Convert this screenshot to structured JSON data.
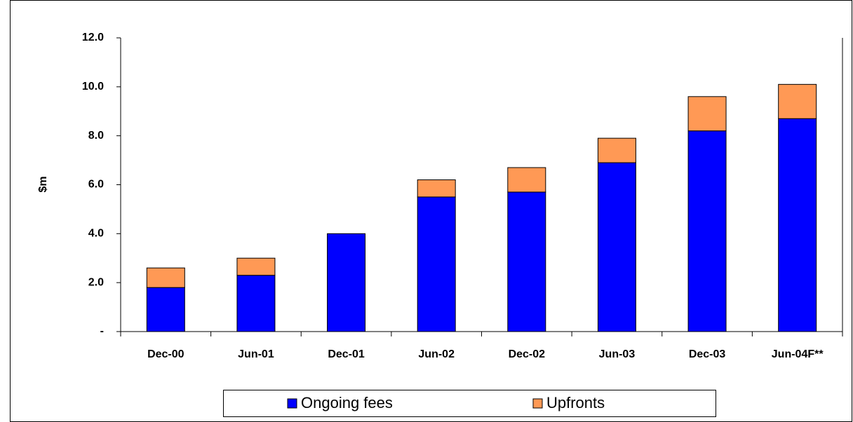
{
  "chart_data": {
    "type": "stacked_bar",
    "y_label": "$m",
    "categories": [
      "Dec-00",
      "Jun-01",
      "Dec-01",
      "Jun-02",
      "Dec-02",
      "Jun-03",
      "Dec-03",
      "Jun-04F**"
    ],
    "series": [
      {
        "name": "Ongoing fees",
        "color": "#0000ff",
        "values": [
          1.8,
          2.3,
          4.0,
          5.5,
          5.7,
          6.9,
          8.2,
          8.7
        ]
      },
      {
        "name": "Upfronts",
        "color": "#ff9955",
        "values": [
          0.8,
          0.7,
          0,
          0.7,
          1.0,
          1.0,
          1.4,
          1.4
        ]
      }
    ],
    "ylim": [
      0,
      12
    ],
    "yticks": [
      {
        "value": 0,
        "label": "-"
      },
      {
        "value": 2,
        "label": "2.0"
      },
      {
        "value": 4,
        "label": "4.0"
      },
      {
        "value": 6,
        "label": "6.0"
      },
      {
        "value": 8,
        "label": "8.0"
      },
      {
        "value": 10,
        "label": "10.0"
      },
      {
        "value": 12,
        "label": "12.0"
      }
    ]
  }
}
